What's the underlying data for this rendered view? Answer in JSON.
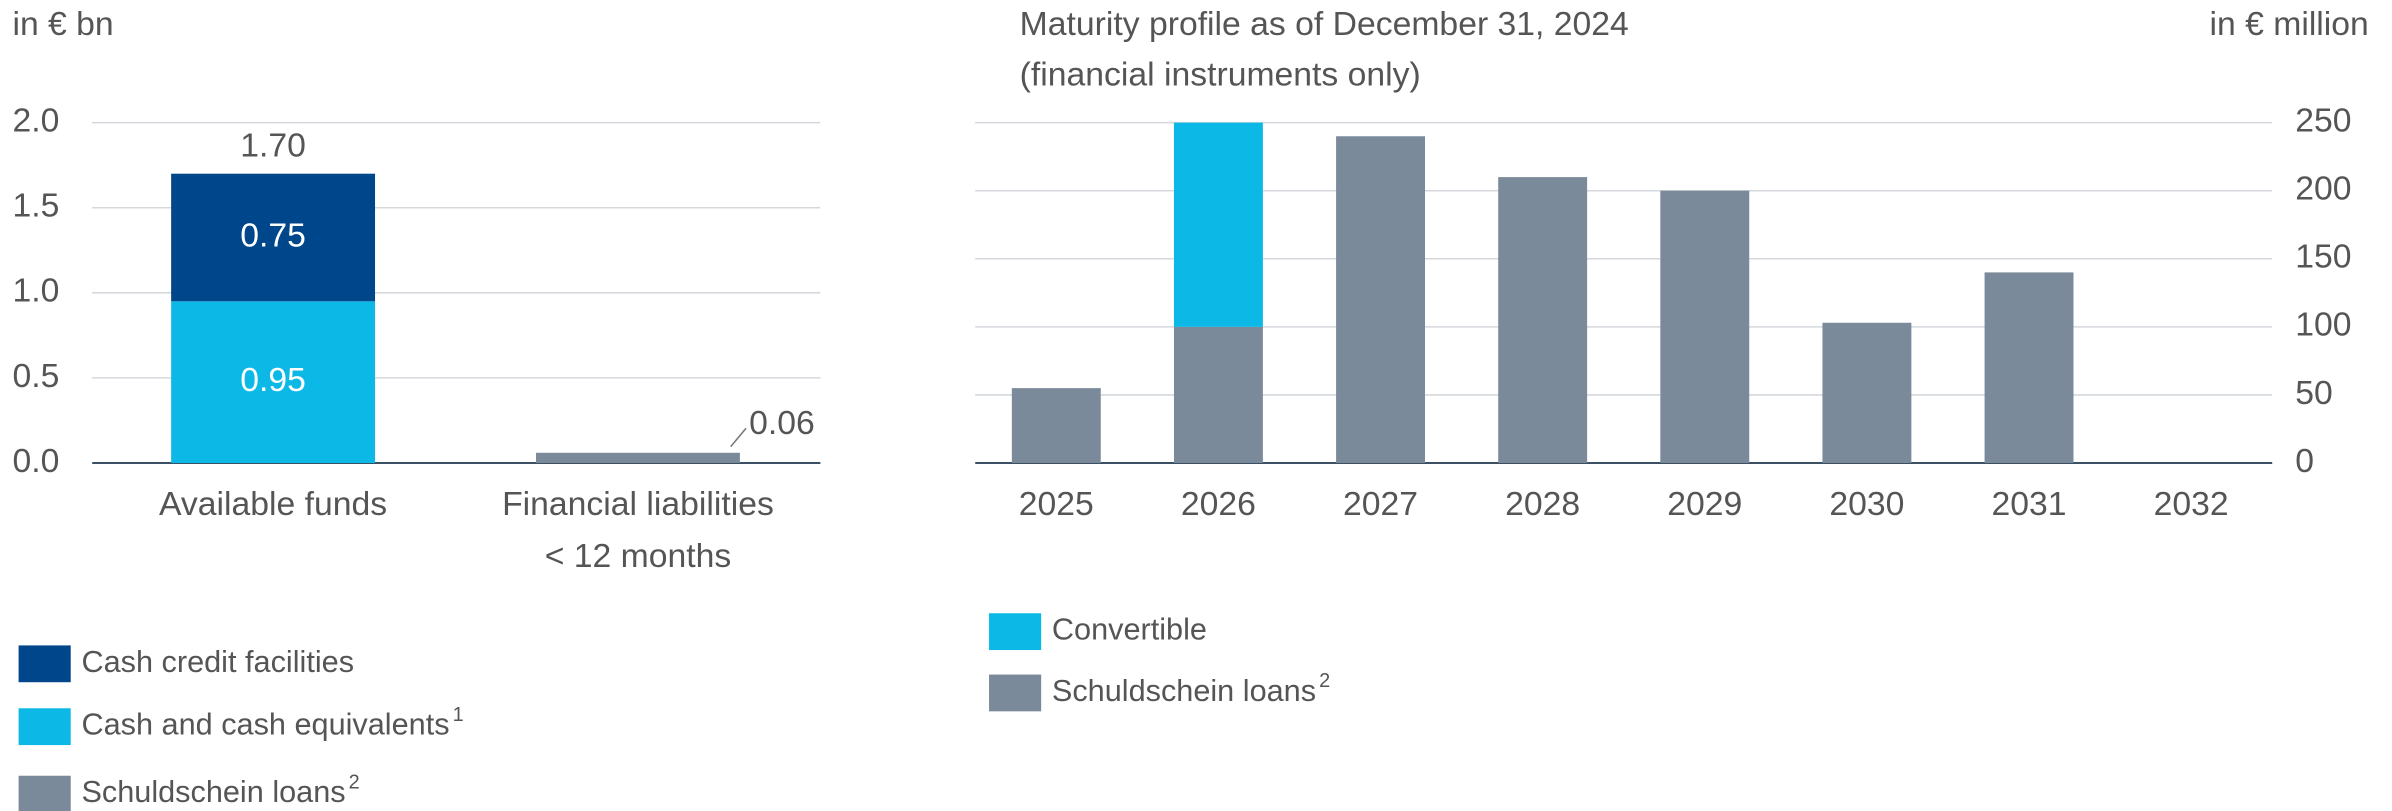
{
  "chart_data": [
    {
      "type": "stacked-bar",
      "y_label": "in € bn",
      "categories": [
        "Available funds",
        "Financial liabilities\n< 12 months"
      ],
      "series": [
        {
          "name": "Cash credit facilities",
          "color": "#00468b",
          "values": [
            0.75,
            null
          ]
        },
        {
          "name": "Cash and cash equivalents",
          "note": "1",
          "color": "#0cb9e6",
          "values": [
            0.95,
            null
          ]
        },
        {
          "name": "Schuldschein loans",
          "note": "2",
          "color": "#7b8a9a",
          "values": [
            null,
            0.06
          ]
        }
      ],
      "totals": [
        1.7,
        null
      ],
      "total_labels": [
        "1.70",
        null
      ],
      "data_labels": true,
      "ylim": [
        0,
        2
      ],
      "yticks": [
        {
          "value": 0,
          "label": "0.0"
        },
        0.5,
        {
          "value": 1,
          "label": "1.0"
        },
        1.5,
        {
          "value": 2,
          "label": "2.0"
        }
      ],
      "grid": true
    },
    {
      "type": "stacked-bar",
      "title": "Maturity profile as of December 31, 2024",
      "subtitle": "(financial instruments only)",
      "y_label": "in € million",
      "categories": [
        "2025",
        "2026",
        "2027",
        "2028",
        "2029",
        "2030",
        "2031",
        "2032"
      ],
      "series": [
        {
          "name": "Convertible",
          "color": "#0cb9e6",
          "values": [
            null,
            150,
            null,
            null,
            null,
            null,
            null,
            null
          ]
        },
        {
          "name": "Schuldschein loans",
          "note": "2",
          "color": "#7b8a9a",
          "values": [
            55,
            100,
            240,
            210,
            200,
            103,
            140,
            null
          ]
        }
      ],
      "data_labels": false,
      "ylim": [
        0,
        250
      ],
      "yticks": [
        0,
        50,
        100,
        150,
        200,
        250
      ],
      "grid": true
    }
  ]
}
